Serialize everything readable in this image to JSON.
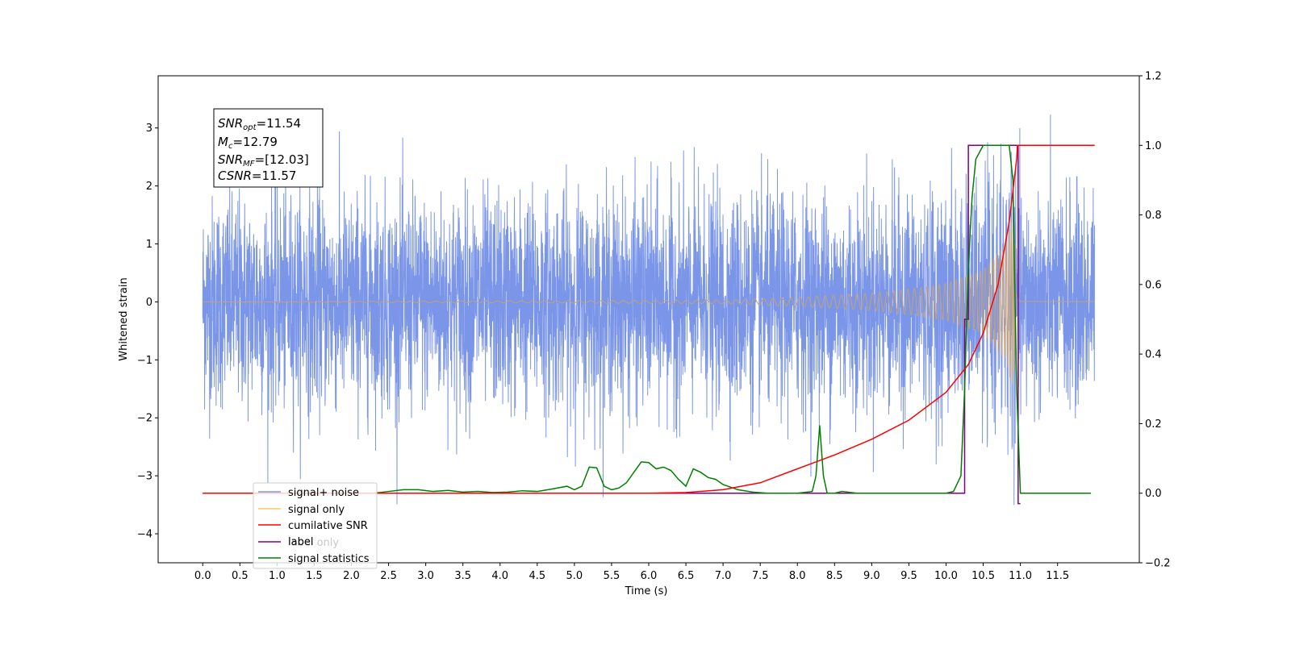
{
  "chart_data": {
    "type": "line",
    "xlabel": "Time (s)",
    "ylabel": "Whitened strain",
    "xlim": [
      -0.6,
      12.6
    ],
    "ylim": [
      -4.5,
      3.9
    ],
    "ylim_right": [
      -0.2,
      1.2
    ],
    "x_ticks": [
      "0.0",
      "0.5",
      "1.0",
      "1.5",
      "2.0",
      "2.5",
      "3.0",
      "3.5",
      "4.0",
      "4.5",
      "5.0",
      "5.5",
      "6.0",
      "6.5",
      "7.0",
      "7.5",
      "8.0",
      "8.5",
      "9.0",
      "9.5",
      "10.0",
      "10.5",
      "11.0",
      "11.5"
    ],
    "y_ticks_left": [
      "−4",
      "−3",
      "−2",
      "−1",
      "0",
      "1",
      "2",
      "3"
    ],
    "y_ticks_right": [
      "−0.2",
      "0.0",
      "0.2",
      "0.4",
      "0.6",
      "0.8",
      "1.0",
      "1.2"
    ],
    "annotation": [
      {
        "main": "SNR",
        "sub": "opt",
        "rest": "=11.54"
      },
      {
        "main": "M",
        "sub": "c",
        "rest": "=12.79"
      },
      {
        "main": "SNR",
        "sub": "MF",
        "rest": "=[12.03]"
      },
      {
        "main": "CSNR",
        "sub": "",
        "rest": "=11.57"
      }
    ],
    "legend": [
      "signal+ noise",
      "signal only",
      "cumilative SNR",
      "label",
      "label only",
      "signal statistics"
    ],
    "legend_position": "lower-left",
    "colors": {
      "signal_noise": "#7b96e8",
      "signal_only": "#c4a078",
      "signal_only_legend": "#ffc766",
      "cumulative_snr": "#ff0000",
      "label": "#800080",
      "signal_statistics": "#008000"
    },
    "series": [
      {
        "name": "signal+ noise",
        "axis": "left",
        "x_range": [
          0.0,
          12.0
        ],
        "noise_std": 0.9,
        "peak_max": 3.5,
        "peak_min": -3.5
      },
      {
        "name": "signal only",
        "axis": "left",
        "chirp": {
          "t_merge": 10.95,
          "amp_x": [
            0.0,
            7.0,
            8.0,
            9.0,
            9.5,
            10.0,
            10.5,
            10.8,
            10.9,
            10.95,
            11.0,
            12.0
          ],
          "amp_y": [
            0.0,
            0.03,
            0.08,
            0.15,
            0.22,
            0.32,
            0.55,
            1.0,
            1.5,
            0.6,
            0.05,
            0.02
          ]
        }
      },
      {
        "name": "cumilative SNR",
        "axis": "right",
        "x": [
          0.0,
          6.0,
          6.5,
          7.0,
          7.5,
          8.0,
          8.5,
          9.0,
          9.5,
          10.0,
          10.3,
          10.5,
          10.7,
          10.85,
          10.95,
          10.96,
          12.0
        ],
        "y": [
          0.0,
          0.0,
          0.002,
          0.01,
          0.03,
          0.07,
          0.11,
          0.155,
          0.21,
          0.29,
          0.37,
          0.46,
          0.6,
          0.78,
          0.96,
          1.0,
          1.0
        ]
      },
      {
        "name": "label",
        "axis": "right",
        "x": [
          0.0,
          10.25,
          10.25,
          10.3,
          10.3,
          10.97,
          10.97,
          11.0
        ],
        "y": [
          0.0,
          0.0,
          0.5,
          0.5,
          1.0,
          1.0,
          -0.03,
          -0.03
        ]
      },
      {
        "name": "signal statistics",
        "axis": "right",
        "x": [
          0.0,
          2.3,
          2.5,
          2.7,
          2.9,
          3.1,
          3.3,
          3.5,
          3.7,
          3.9,
          4.1,
          4.3,
          4.5,
          4.7,
          4.9,
          5.0,
          5.1,
          5.2,
          5.3,
          5.4,
          5.5,
          5.6,
          5.7,
          5.8,
          5.9,
          6.0,
          6.1,
          6.2,
          6.3,
          6.4,
          6.5,
          6.6,
          6.7,
          6.8,
          6.9,
          7.0,
          7.2,
          7.4,
          7.6,
          8.0,
          8.2,
          8.25,
          8.3,
          8.35,
          8.4,
          8.5,
          8.6,
          8.8,
          9.0,
          9.5,
          10.0,
          10.1,
          10.2,
          10.25,
          10.3,
          10.35,
          10.4,
          10.5,
          10.6,
          10.7,
          10.8,
          10.85,
          10.9,
          10.95,
          11.0,
          11.1,
          11.5,
          11.95
        ],
        "y": [
          0.0,
          0.0,
          0.005,
          0.01,
          0.01,
          0.005,
          0.008,
          0.003,
          0.005,
          0.002,
          0.003,
          0.007,
          0.005,
          0.012,
          0.02,
          0.01,
          0.02,
          0.075,
          0.073,
          0.02,
          0.01,
          0.015,
          0.03,
          0.06,
          0.09,
          0.088,
          0.07,
          0.075,
          0.065,
          0.04,
          0.02,
          0.07,
          0.06,
          0.045,
          0.04,
          0.025,
          0.01,
          0.003,
          0.0,
          0.0,
          0.005,
          0.05,
          0.195,
          0.05,
          0.0,
          0.0,
          0.005,
          0.0,
          0.0,
          0.0,
          0.0,
          0.005,
          0.05,
          0.3,
          0.65,
          0.85,
          0.96,
          1.0,
          1.0,
          1.0,
          1.0,
          1.0,
          0.9,
          0.3,
          0.0,
          0.0,
          0.0,
          0.0
        ]
      }
    ]
  }
}
